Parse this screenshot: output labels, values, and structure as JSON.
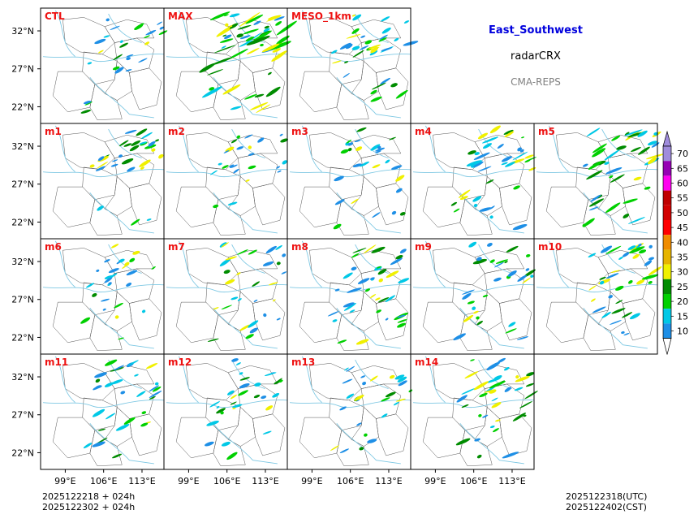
{
  "header": {
    "region": "East_Southwest",
    "product": "radarCRX",
    "model": "CMA-REPS"
  },
  "footer": {
    "init_utc": "2025122218  +  024h",
    "init_cst": "2025122302  +  024h",
    "valid_utc": "2025122318(UTC)",
    "valid_cst": "2025122402(CST)"
  },
  "colors": {
    "panel_label": "#ee1111",
    "title": "#0000dd",
    "model": "#808080",
    "river": "#7ec8e3",
    "border": "#555555"
  },
  "chart_data": {
    "type": "heatmap",
    "variable": "radar composite reflectivity (dBZ)",
    "x_ticks": [
      "99°E",
      "106°E",
      "113°E"
    ],
    "y_ticks": [
      "32°N",
      "27°N",
      "22°N"
    ],
    "xlim": [
      94.5,
      117
    ],
    "ylim": [
      19.8,
      35
    ],
    "panels": [
      {
        "label": "CTL",
        "intensity": 0.6
      },
      {
        "label": "MAX",
        "intensity": 1.6
      },
      {
        "label": "MESO_1km",
        "intensity": 0.9
      },
      {
        "label": "m1",
        "intensity": 0.7
      },
      {
        "label": "m2",
        "intensity": 0.5
      },
      {
        "label": "m3",
        "intensity": 0.6
      },
      {
        "label": "m4",
        "intensity": 1.0
      },
      {
        "label": "m5",
        "intensity": 1.1
      },
      {
        "label": "m6",
        "intensity": 0.6
      },
      {
        "label": "m7",
        "intensity": 0.7
      },
      {
        "label": "m8",
        "intensity": 1.0
      },
      {
        "label": "m9",
        "intensity": 0.8
      },
      {
        "label": "m10",
        "intensity": 1.0
      },
      {
        "label": "m11",
        "intensity": 0.8
      },
      {
        "label": "m12",
        "intensity": 0.7
      },
      {
        "label": "m13",
        "intensity": 0.6
      },
      {
        "label": "m14",
        "intensity": 1.0
      }
    ],
    "colorbar": {
      "levels": [
        "10",
        "15",
        "20",
        "25",
        "30",
        "35",
        "40",
        "45",
        "50",
        "55",
        "60",
        "65",
        "70"
      ],
      "colors": [
        "#1e8fe6",
        "#00c8e6",
        "#00d000",
        "#008c00",
        "#f0f000",
        "#e6b400",
        "#f08c00",
        "#ff0000",
        "#d20000",
        "#c00000",
        "#ff00f0",
        "#9600b4",
        "#a08cdc"
      ],
      "extend": "both"
    }
  }
}
